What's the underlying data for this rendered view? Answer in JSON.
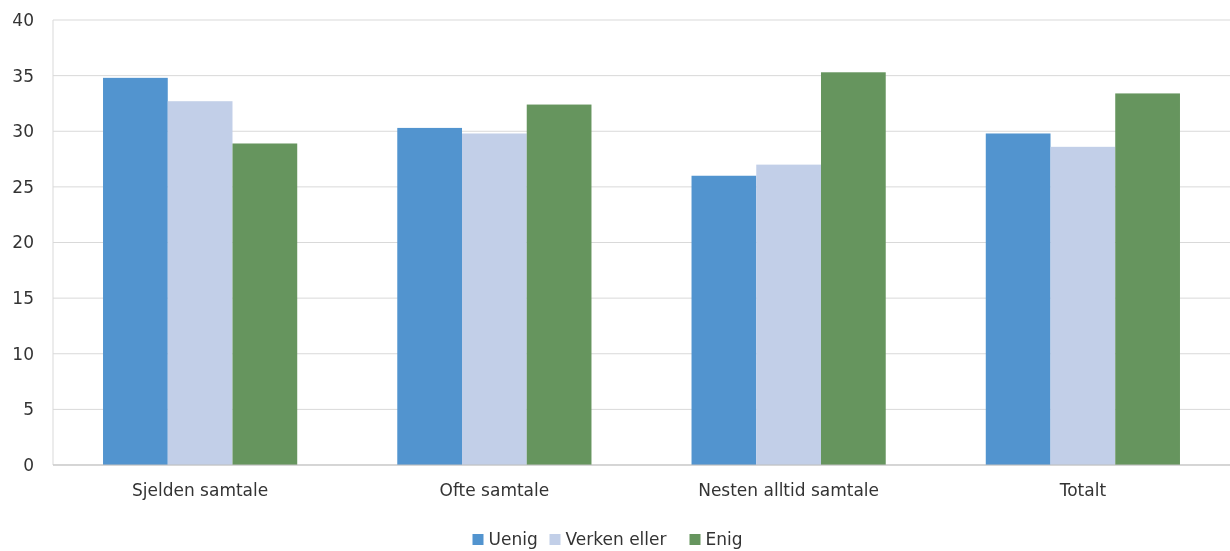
{
  "chart_data": {
    "type": "bar",
    "categories": [
      "Sjelden samtale",
      "Ofte samtale",
      "Nesten alltid samtale",
      "Totalt"
    ],
    "series": [
      {
        "name": "Uenig",
        "color": "#5294cf",
        "values": [
          34.8,
          30.3,
          26.0,
          29.8
        ]
      },
      {
        "name": "Verken eller",
        "color": "#c2cfe8",
        "values": [
          32.7,
          29.8,
          27.0,
          28.6
        ]
      },
      {
        "name": "Enig",
        "color": "#66955e",
        "values": [
          28.9,
          32.4,
          35.3,
          33.4
        ]
      }
    ],
    "ylim": [
      0,
      40
    ],
    "yticks": [
      0,
      5,
      10,
      15,
      20,
      25,
      30,
      35,
      40
    ],
    "grid": "y",
    "legend": "bottom"
  }
}
